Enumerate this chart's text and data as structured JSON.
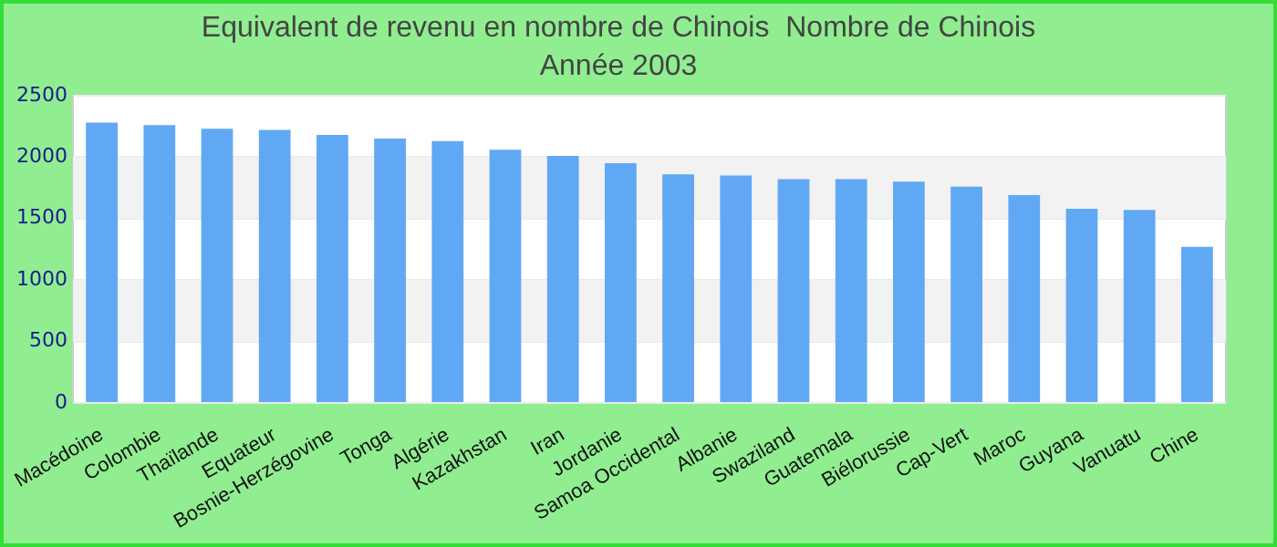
{
  "chart_data": {
    "type": "bar",
    "title": "Equivalent de revenu en nombre de Chinois  Nombre de Chinois",
    "subtitle": "Année 2003",
    "categories": [
      "Macédoine",
      "Colombie",
      "Thaïlande",
      "Equateur",
      "Bosnie-Herzégovine",
      "Tonga",
      "Algérie",
      "Kazakhstan",
      "Iran",
      "Jordanie",
      "Samoa Occidental",
      "Albanie",
      "Swaziland",
      "Guatemala",
      "Biélorussie",
      "Cap-Vert",
      "Maroc",
      "Guyana",
      "Vanuatu",
      "Chine"
    ],
    "values": [
      2280,
      2260,
      2230,
      2220,
      2180,
      2150,
      2130,
      2060,
      2010,
      1950,
      1860,
      1850,
      1820,
      1820,
      1800,
      1760,
      1690,
      1580,
      1570,
      1270
    ],
    "color": "#61a8f4",
    "ylim": [
      0,
      2500
    ],
    "yticks": [
      0,
      500,
      1000,
      1500,
      2000,
      2500
    ],
    "grid": "y"
  }
}
